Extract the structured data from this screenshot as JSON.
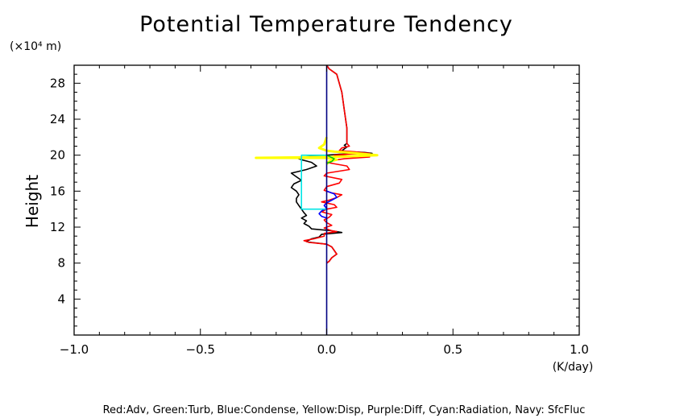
{
  "chart_data": {
    "type": "line",
    "title": "Potential Temperature Tendency",
    "ylabel": "Height",
    "yunit": "(×10⁴ m)",
    "xunit": "(K/day)",
    "footer": "Red:Adv, Green:Turb, Blue:Condense, Yellow:Disp, Purple:Diff, Cyan:Radiation, Navy: SfcFluc",
    "xlim": [
      -1.0,
      1.0
    ],
    "ylim": [
      0,
      30
    ],
    "x_ticks": [
      "-1.0",
      "-0.5",
      "0.0",
      "0.5",
      "1.0"
    ],
    "y_ticks": [
      "4",
      "8",
      "12",
      "16",
      "20",
      "24",
      "28"
    ],
    "grid": false,
    "colors": {
      "total": "#000000",
      "adv": "#ff0000",
      "turb": "#00cc00",
      "condense": "#0000ff",
      "disp": "#ffff00",
      "diff": "#a020f0",
      "radiation": "#00e5e5",
      "sfcfluc": "#000080"
    },
    "series": [
      {
        "key": "total",
        "points": [
          [
            0.0,
            30
          ],
          [
            0.01,
            29.6
          ],
          [
            0.04,
            29
          ],
          [
            0.06,
            27
          ],
          [
            0.07,
            25
          ],
          [
            0.08,
            23
          ],
          [
            0.08,
            22
          ],
          [
            0.08,
            21.6
          ],
          [
            0.08,
            21.3
          ],
          [
            0.07,
            21.1
          ],
          [
            0.08,
            20.9
          ],
          [
            0.07,
            20.7
          ],
          [
            0.06,
            20.5
          ],
          [
            0.08,
            20.4
          ],
          [
            0.15,
            20.3
          ],
          [
            0.18,
            20.2
          ],
          [
            0.05,
            20.1
          ],
          [
            0.0,
            20.0
          ],
          [
            -0.05,
            19.9
          ],
          [
            -0.12,
            19.7
          ],
          [
            -0.1,
            19.5
          ],
          [
            -0.06,
            19.2
          ],
          [
            -0.04,
            18.8
          ],
          [
            -0.08,
            18.4
          ],
          [
            -0.14,
            18.0
          ],
          [
            -0.12,
            17.6
          ],
          [
            -0.1,
            17.2
          ],
          [
            -0.13,
            16.8
          ],
          [
            -0.14,
            16.4
          ],
          [
            -0.12,
            16.0
          ],
          [
            -0.11,
            15.6
          ],
          [
            -0.12,
            15.2
          ],
          [
            -0.12,
            14.8
          ],
          [
            -0.11,
            14.4
          ],
          [
            -0.1,
            14.0
          ],
          [
            -0.09,
            13.6
          ],
          [
            -0.08,
            13.3
          ],
          [
            -0.1,
            13.0
          ],
          [
            -0.08,
            12.7
          ],
          [
            -0.09,
            12.4
          ],
          [
            -0.07,
            12.1
          ],
          [
            -0.06,
            11.8
          ],
          [
            0.02,
            11.6
          ],
          [
            0.06,
            11.4
          ],
          [
            -0.02,
            11.2
          ],
          [
            -0.03,
            10.9
          ],
          [
            -0.06,
            10.7
          ],
          [
            -0.08,
            10.4
          ],
          [
            -0.06,
            10.3
          ],
          [
            0.0,
            10.1
          ],
          [
            0.02,
            9.8
          ],
          [
            0.03,
            9.4
          ],
          [
            0.04,
            9.0
          ],
          [
            0.02,
            8.6
          ],
          [
            0.01,
            8.2
          ],
          [
            0.0,
            8.0
          ]
        ]
      },
      {
        "key": "adv",
        "points": [
          [
            0.0,
            30
          ],
          [
            0.01,
            29.6
          ],
          [
            0.04,
            29
          ],
          [
            0.06,
            27
          ],
          [
            0.07,
            25
          ],
          [
            0.08,
            23
          ],
          [
            0.08,
            22
          ],
          [
            0.08,
            21.6
          ],
          [
            0.08,
            21.3
          ],
          [
            0.09,
            21.0
          ],
          [
            0.06,
            20.8
          ],
          [
            0.05,
            20.5
          ],
          [
            0.1,
            20.4
          ],
          [
            0.17,
            20.2
          ],
          [
            0.08,
            20.1
          ],
          [
            0.03,
            20.0
          ],
          [
            0.17,
            19.8
          ],
          [
            0.07,
            19.6
          ],
          [
            0.02,
            19.4
          ],
          [
            0.0,
            19.2
          ],
          [
            0.08,
            18.8
          ],
          [
            0.09,
            18.4
          ],
          [
            0.0,
            18.0
          ],
          [
            -0.01,
            17.7
          ],
          [
            0.06,
            17.3
          ],
          [
            0.05,
            16.9
          ],
          [
            0.0,
            16.5
          ],
          [
            -0.01,
            16.1
          ],
          [
            0.02,
            15.8
          ],
          [
            0.06,
            15.6
          ],
          [
            0.04,
            15.3
          ],
          [
            0.01,
            15.0
          ],
          [
            -0.02,
            14.8
          ],
          [
            0.03,
            14.5
          ],
          [
            0.04,
            14.2
          ],
          [
            0.0,
            14.0
          ],
          [
            -0.02,
            13.7
          ],
          [
            0.02,
            13.4
          ],
          [
            0.01,
            13.1
          ],
          [
            -0.01,
            12.8
          ],
          [
            0.0,
            12.5
          ],
          [
            0.02,
            12.2
          ],
          [
            -0.01,
            11.9
          ],
          [
            0.02,
            11.6
          ],
          [
            0.04,
            11.5
          ],
          [
            -0.01,
            11.3
          ],
          [
            -0.01,
            11.0
          ],
          [
            -0.05,
            10.7
          ],
          [
            -0.09,
            10.5
          ],
          [
            -0.07,
            10.3
          ],
          [
            0.0,
            10.1
          ],
          [
            0.02,
            9.8
          ],
          [
            0.03,
            9.4
          ],
          [
            0.04,
            9.0
          ],
          [
            0.02,
            8.6
          ],
          [
            0.01,
            8.2
          ],
          [
            0.0,
            8.0
          ]
        ]
      },
      {
        "key": "disp",
        "points": [
          [
            0.0,
            22.0
          ],
          [
            -0.01,
            21.2
          ],
          [
            -0.03,
            20.8
          ],
          [
            0.0,
            20.5
          ],
          [
            0.03,
            20.4
          ],
          [
            0.08,
            20.3
          ],
          [
            0.2,
            20.0
          ],
          [
            0.12,
            19.9
          ],
          [
            0.02,
            19.8
          ],
          [
            -0.28,
            19.7
          ],
          [
            0.0,
            19.7
          ],
          [
            0.04,
            19.5
          ],
          [
            0.01,
            19.3
          ],
          [
            0.0,
            19.0
          ]
        ]
      },
      {
        "key": "condense",
        "points": [
          [
            0.0,
            16.0
          ],
          [
            0.03,
            15.7
          ],
          [
            0.04,
            15.3
          ],
          [
            0.02,
            15.0
          ],
          [
            0.0,
            14.7
          ],
          [
            -0.01,
            14.4
          ],
          [
            0.0,
            14.1
          ],
          [
            -0.02,
            13.8
          ],
          [
            -0.03,
            13.5
          ],
          [
            -0.02,
            13.2
          ],
          [
            0.0,
            13.0
          ]
        ]
      },
      {
        "key": "turb",
        "points": [
          [
            0.0,
            20.0
          ],
          [
            0.03,
            19.6
          ],
          [
            0.02,
            19.3
          ],
          [
            0.0,
            19.1
          ]
        ]
      },
      {
        "key": "radiation",
        "points": [
          [
            0.0,
            20.0
          ],
          [
            -0.1,
            20.0
          ],
          [
            -0.1,
            16.5
          ],
          [
            -0.1,
            14.0
          ],
          [
            -0.03,
            14.0
          ],
          [
            0.0,
            14.0
          ]
        ]
      },
      {
        "key": "sfcfluc",
        "points": [
          [
            0.0,
            30
          ],
          [
            0.0,
            0
          ]
        ]
      }
    ]
  }
}
